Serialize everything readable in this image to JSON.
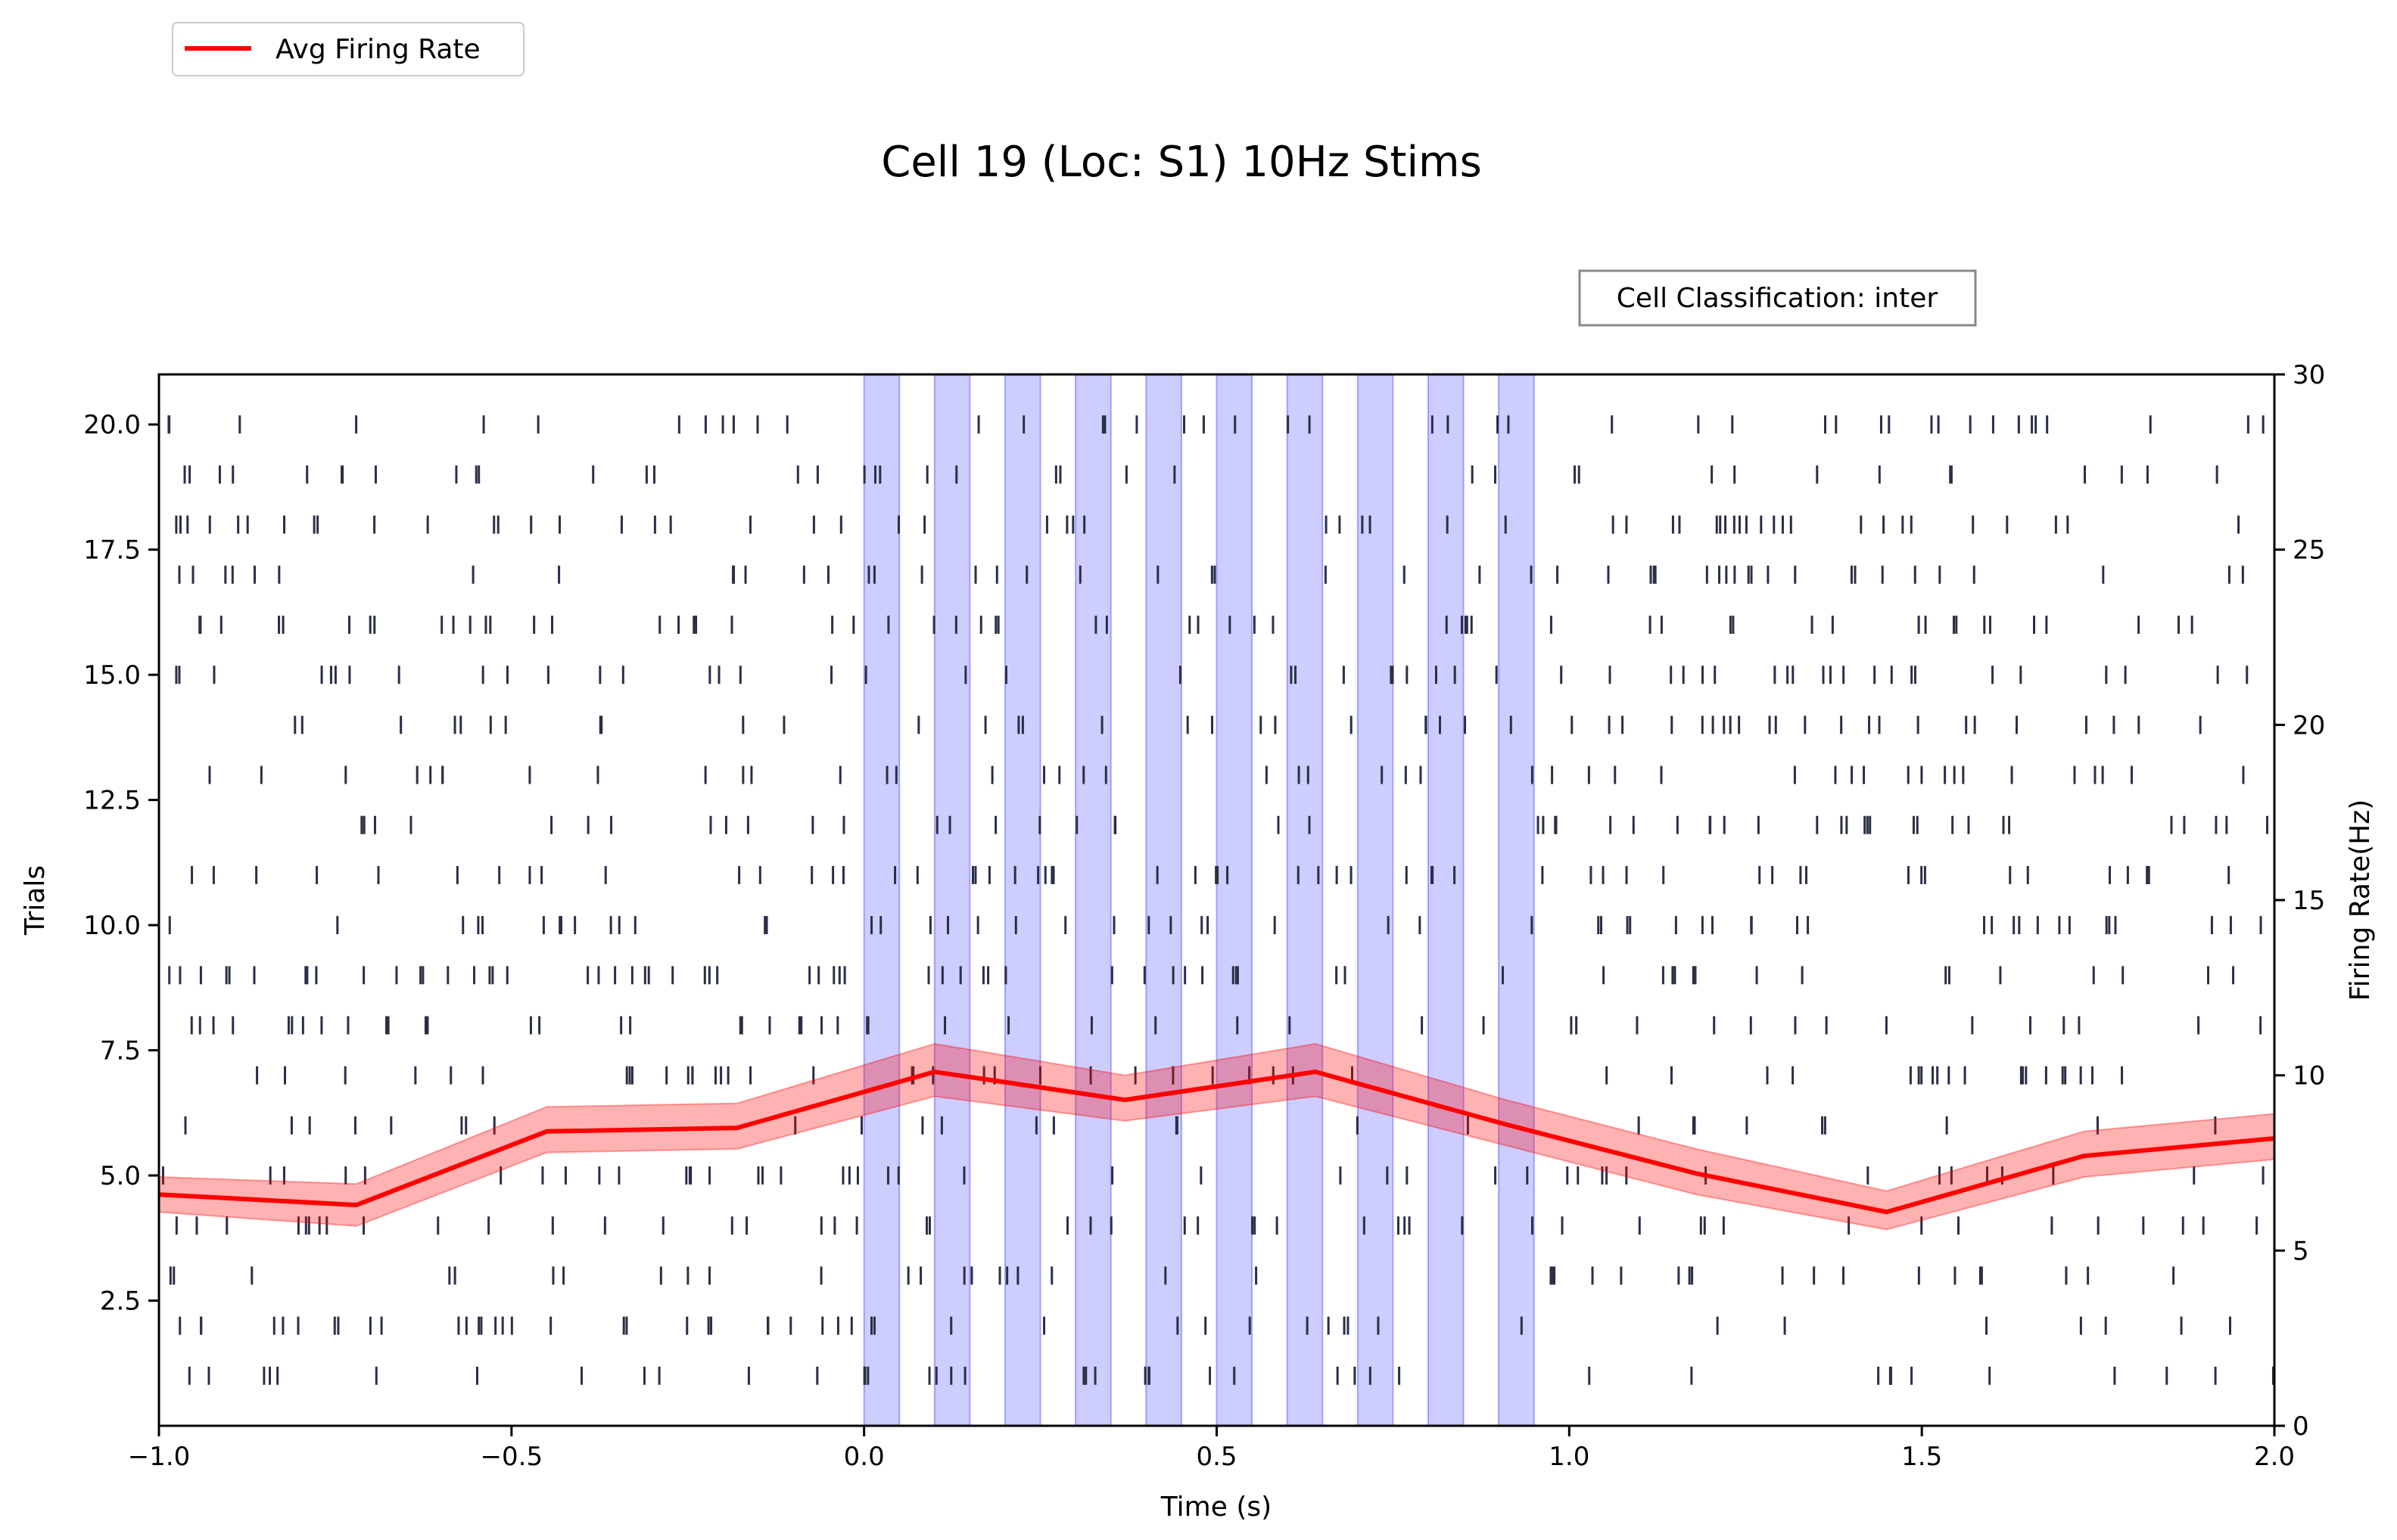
{
  "chart_data": {
    "type": "line",
    "title": "Cell 19 (Loc: S1) 10Hz Stims",
    "xlabel": "Time (s)",
    "ylabel_left": "Trials",
    "ylabel_right": "Firing Rate(Hz)",
    "xlim": [
      -1.0,
      2.0
    ],
    "ylim_left": [
      0,
      21
    ],
    "ylim_right": [
      0,
      30
    ],
    "xticks": [
      -1.0,
      -0.5,
      0.0,
      0.5,
      1.0,
      1.5,
      2.0
    ],
    "xtick_labels": [
      "−1.0",
      "−0.5",
      "0.0",
      "0.5",
      "1.0",
      "1.5",
      "2.0"
    ],
    "yticks_left": [
      2.5,
      5.0,
      7.5,
      10.0,
      12.5,
      15.0,
      17.5,
      20.0
    ],
    "ytick_labels_left": [
      "2.5",
      "5.0",
      "7.5",
      "10.0",
      "12.5",
      "15.0",
      "17.5",
      "20.0"
    ],
    "yticks_right": [
      0,
      5,
      10,
      15,
      20,
      25,
      30
    ],
    "ytick_labels_right": [
      "0",
      "5",
      "10",
      "15",
      "20",
      "25",
      "30"
    ],
    "legend": {
      "label": "Avg Firing Rate",
      "placement": "top-left (outside)",
      "color": "#ff0000"
    },
    "annotation": "Cell Classification: inter",
    "stim_windows": {
      "start": 0.0,
      "period": 0.1,
      "duration": 0.05,
      "count": 10,
      "color": "#6666ff"
    },
    "raster": {
      "trials": 20,
      "color": "#2b2f45",
      "spike_rate_hz": 16
    },
    "series": [
      {
        "name": "Avg Firing Rate",
        "color": "#ff0000",
        "x": [
          -1.0,
          -0.72,
          -0.45,
          -0.18,
          0.1,
          0.37,
          0.64,
          0.91,
          1.18,
          1.45,
          1.73,
          2.0
        ],
        "values": [
          6.6,
          6.3,
          8.4,
          8.5,
          10.1,
          9.3,
          10.1,
          8.6,
          7.2,
          6.1,
          7.7,
          8.2
        ],
        "lower": [
          6.1,
          5.7,
          7.8,
          7.9,
          9.4,
          8.7,
          9.4,
          8.0,
          6.6,
          5.6,
          7.1,
          7.6
        ],
        "upper": [
          7.1,
          6.9,
          9.1,
          9.2,
          10.9,
          10.0,
          10.9,
          9.3,
          7.9,
          6.7,
          8.4,
          8.9
        ]
      }
    ]
  }
}
